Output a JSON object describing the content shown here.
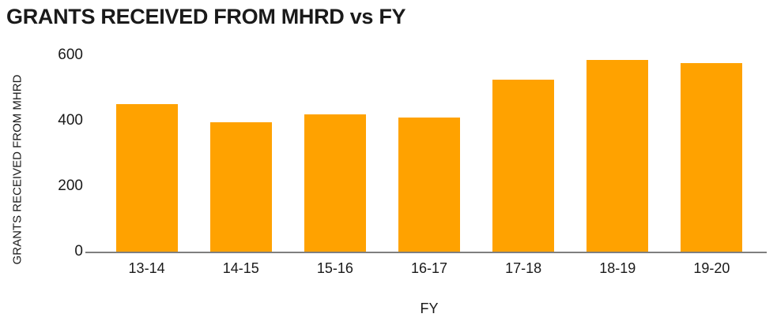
{
  "chart": {
    "title": "GRANTS RECEIVED FROM MHRD vs FY",
    "colors": {
      "bar": "#FFA200",
      "axis_line": "#7F7F7F",
      "text": "#1A1A1A",
      "background": "#FFFFFF"
    }
  },
  "chart_data": {
    "type": "bar",
    "title": "GRANTS RECEIVED FROM MHRD vs FY",
    "categories": [
      "13-14",
      "14-15",
      "15-16",
      "16-17",
      "17-18",
      "18-19",
      "19-20"
    ],
    "values": [
      450,
      395,
      420,
      410,
      525,
      585,
      575
    ],
    "xlabel": "FY",
    "ylabel": "GRANTS RECEIVED FROM MHRD",
    "ylim": [
      0,
      600
    ],
    "yticks": [
      0,
      200,
      400,
      600
    ],
    "grid": false,
    "legend": "none",
    "bar_color": "#FFA200"
  }
}
